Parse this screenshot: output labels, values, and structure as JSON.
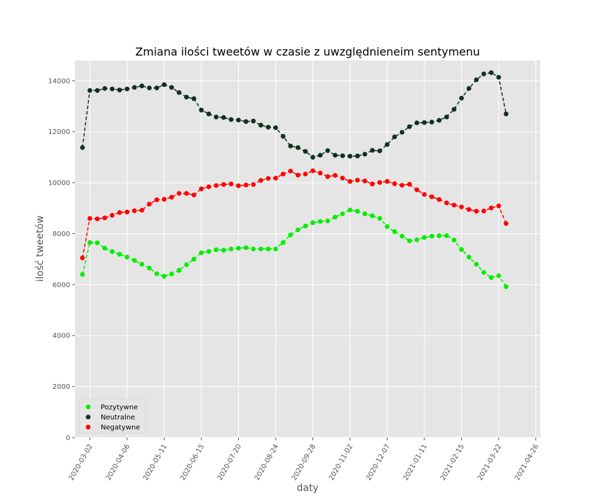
{
  "chart_data": {
    "type": "line",
    "title": "Zmiana ilości tweetów w czasie z uwzględnieneim sentymenu",
    "xlabel": "daty",
    "ylabel": "ilość tweetów",
    "x_range": [
      "2020-02-14",
      "2021-04-26"
    ],
    "xlim_index": [
      -1.0,
      61.6
    ],
    "ylim": [
      0,
      14800
    ],
    "y_ticks": [
      0,
      2000,
      4000,
      6000,
      8000,
      10000,
      12000,
      14000
    ],
    "x_ticks": [
      {
        "index": 1,
        "label": "2020-03-02"
      },
      {
        "index": 6,
        "label": "2020-04-06"
      },
      {
        "index": 11,
        "label": "2020-05-11"
      },
      {
        "index": 16,
        "label": "2020-06-15"
      },
      {
        "index": 21,
        "label": "2020-07-20"
      },
      {
        "index": 26,
        "label": "2020-08-24"
      },
      {
        "index": 31,
        "label": "2020-09-28"
      },
      {
        "index": 36,
        "label": "2020-11-02"
      },
      {
        "index": 41,
        "label": "2020-12-07"
      },
      {
        "index": 46,
        "label": "2021-01-11"
      },
      {
        "index": 51,
        "label": "2021-02-15"
      },
      {
        "index": 56,
        "label": "2021-03-22"
      },
      {
        "index": 61,
        "label": "2021-04-26"
      }
    ],
    "grid": true,
    "legend_position": "lower-left",
    "x_index": [
      0,
      1,
      2,
      3,
      4,
      5,
      6,
      7,
      8,
      9,
      10,
      11,
      12,
      13,
      14,
      15,
      16,
      17,
      18,
      19,
      20,
      21,
      22,
      23,
      24,
      25,
      26,
      27,
      28,
      29,
      30,
      31,
      32,
      33,
      34,
      35,
      36,
      37,
      38,
      39,
      40,
      41,
      42,
      43,
      44,
      45,
      46,
      47,
      48,
      49,
      50,
      51,
      52,
      53,
      54,
      55,
      56,
      57
    ],
    "series": [
      {
        "name": "Pozytywne",
        "color": "#00ee00",
        "values": [
          6400,
          7650,
          7640,
          7430,
          7300,
          7190,
          7080,
          6950,
          6800,
          6650,
          6430,
          6330,
          6420,
          6560,
          6780,
          7000,
          7250,
          7300,
          7370,
          7350,
          7400,
          7430,
          7450,
          7400,
          7400,
          7400,
          7400,
          7650,
          7950,
          8150,
          8300,
          8430,
          8480,
          8500,
          8650,
          8780,
          8930,
          8880,
          8780,
          8700,
          8600,
          8280,
          8080,
          7900,
          7720,
          7760,
          7850,
          7900,
          7920,
          7920,
          7750,
          7380,
          7080,
          6800,
          6480,
          6280,
          6350,
          5920
        ]
      },
      {
        "name": "Neutralne",
        "color": "#103020",
        "values": [
          11380,
          13620,
          13620,
          13700,
          13680,
          13640,
          13680,
          13740,
          13800,
          13720,
          13720,
          13850,
          13740,
          13540,
          13360,
          13300,
          12850,
          12700,
          12580,
          12560,
          12480,
          12460,
          12400,
          12420,
          12260,
          12180,
          12160,
          11820,
          11440,
          11380,
          11230,
          11000,
          11080,
          11260,
          11080,
          11060,
          11040,
          11050,
          11120,
          11270,
          11250,
          11500,
          11800,
          11980,
          12200,
          12350,
          12360,
          12380,
          12450,
          12580,
          12880,
          13320,
          13700,
          14040,
          14270,
          14320,
          14140,
          12700
        ]
      },
      {
        "name": "Negatywne",
        "color": "#ff0000",
        "values": [
          7050,
          8600,
          8580,
          8620,
          8720,
          8830,
          8850,
          8900,
          8920,
          9160,
          9330,
          9350,
          9430,
          9580,
          9580,
          9520,
          9760,
          9840,
          9890,
          9930,
          9950,
          9880,
          9910,
          9930,
          10090,
          10170,
          10180,
          10340,
          10460,
          10300,
          10340,
          10470,
          10380,
          10240,
          10290,
          10180,
          10050,
          10100,
          10070,
          9950,
          10010,
          10050,
          9960,
          9900,
          9940,
          9720,
          9540,
          9450,
          9340,
          9210,
          9120,
          9050,
          8950,
          8880,
          8890,
          9010,
          9090,
          8400
        ]
      }
    ]
  }
}
